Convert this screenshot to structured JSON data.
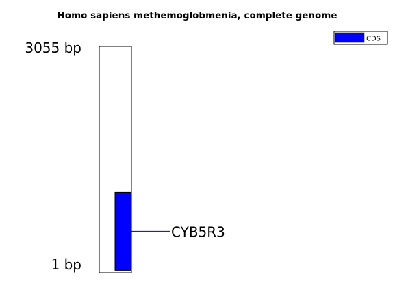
{
  "title": "Homo sapiens methemoglobmenia, complete genome",
  "sequence": {
    "start_label": "1 bp",
    "end_label": "3055 bp",
    "start_bp": 1,
    "end_bp": 3055
  },
  "features": [
    {
      "name": "CYB5R3",
      "type": "CDS",
      "start_bp": 34,
      "end_bp": 1086,
      "color": "#0000ff"
    }
  ],
  "legend": {
    "placement": "top-right",
    "items": [
      {
        "label": "CDS",
        "color": "#0000ff"
      }
    ]
  }
}
